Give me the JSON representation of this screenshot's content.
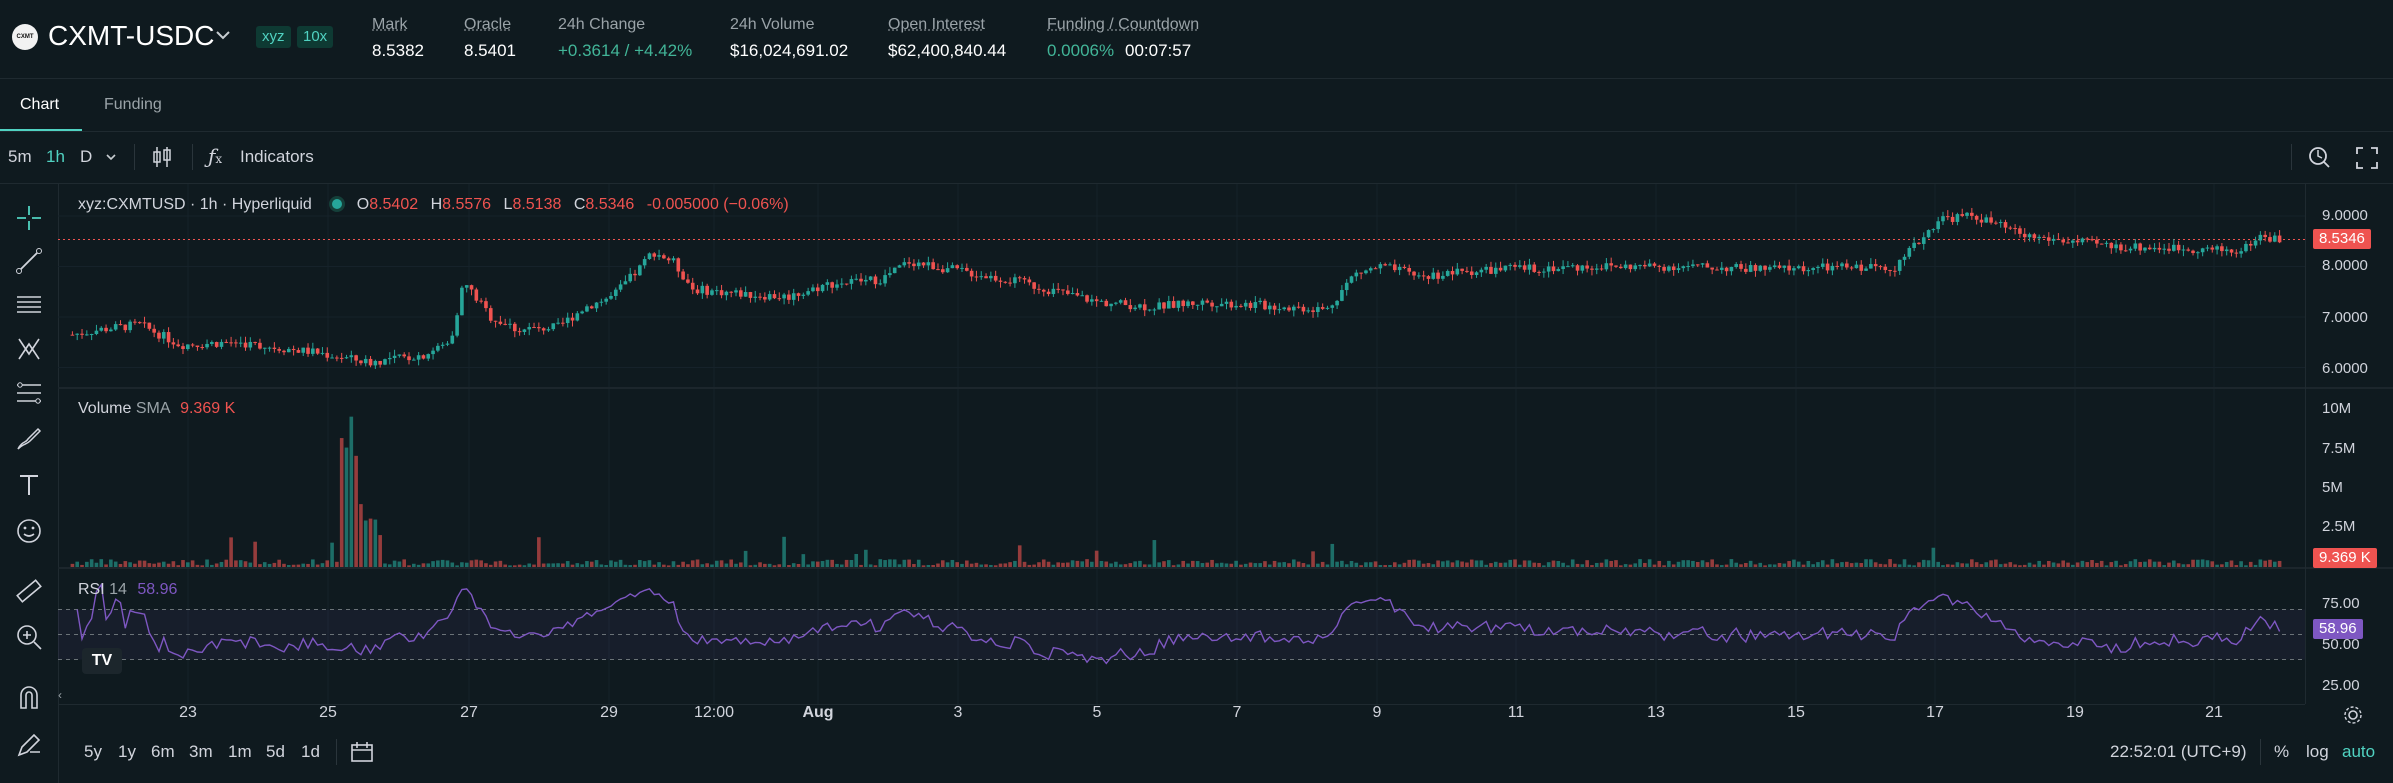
{
  "header": {
    "logo_text": "CXMT",
    "pair": "CXMT-USDC",
    "badges": [
      "xyz",
      "10x"
    ],
    "stats": [
      {
        "label": "Mark",
        "value": "8.5382"
      },
      {
        "label": "Oracle",
        "value": "8.5401"
      },
      {
        "label": "24h Change",
        "value": "+0.3614 / +4.42%"
      },
      {
        "label": "24h Volume",
        "value": "$16,024,691.02"
      },
      {
        "label": "Open Interest",
        "value": "$62,400,840.44"
      },
      {
        "label": "Funding / Countdown",
        "value": "0.0006%",
        "value2": "00:07:57"
      }
    ]
  },
  "tabs": [
    "Chart",
    "Funding"
  ],
  "toolbar": {
    "intervals": [
      "5m",
      "1h",
      "D"
    ],
    "active_interval": "1h",
    "indicators_label": "Indicators"
  },
  "legend": {
    "symbol": "xyz:CXMTUSD · 1h · Hyperliquid",
    "o_label": "O",
    "o": "8.5402",
    "h_label": "H",
    "h": "8.5576",
    "l_label": "L",
    "l": "8.5138",
    "c_label": "C",
    "c": "8.5346",
    "change": "-0.005000 (−0.06%)"
  },
  "volume_legend": {
    "label": "Volume",
    "sma": "SMA",
    "value": "9.369 K"
  },
  "rsi_legend": {
    "label": "RSI",
    "period": "14",
    "value": "58.96"
  },
  "price_axis": [
    "9.0000",
    "8.0000",
    "7.0000",
    "6.0000"
  ],
  "price_tag": "8.5346",
  "volume_axis": [
    "10M",
    "7.5M",
    "5M",
    "2.5M"
  ],
  "volume_tag": "9.369 K",
  "rsi_axis": [
    "75.00",
    "50.00",
    "25.00"
  ],
  "rsi_tag": "58.96",
  "time_axis": [
    "23",
    "25",
    "27",
    "29",
    "12:00",
    "Aug",
    "3",
    "5",
    "7",
    "9",
    "11",
    "13",
    "15",
    "17",
    "19",
    "21"
  ],
  "ranges": [
    "5y",
    "1y",
    "6m",
    "3m",
    "1m",
    "5d",
    "1d"
  ],
  "clock": "22:52:01 (UTC+9)",
  "scale_opts": [
    "%",
    "log",
    "auto"
  ],
  "colors": {
    "up": "#26a69a",
    "down": "#ef5350",
    "rsi": "#7e57c2",
    "accent": "#50d2c1",
    "bg": "#0f1a1f"
  }
}
